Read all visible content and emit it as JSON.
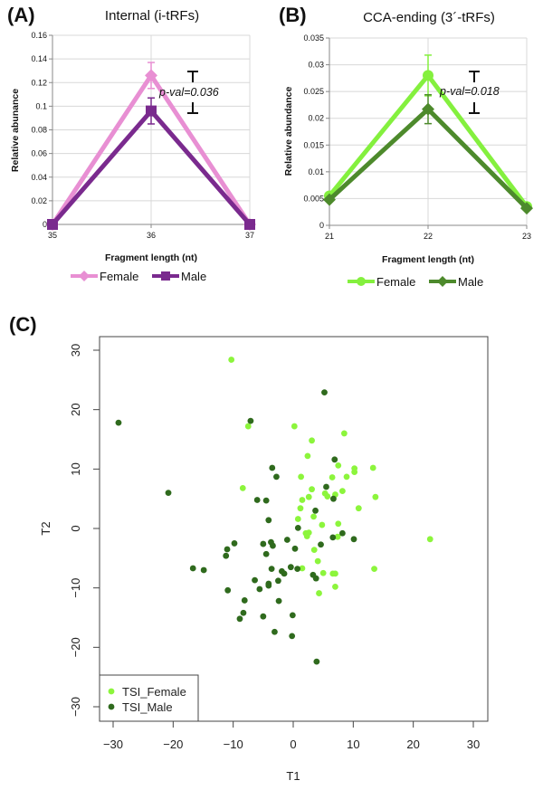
{
  "chart_data": [
    {
      "panel_label": "(A)",
      "type": "line",
      "title": "Internal (i-tRFs)",
      "xlabel": "Fragment length (nt)",
      "ylabel": "Relative abunance",
      "x": [
        35,
        36,
        37
      ],
      "xticks": [
        "35",
        "36",
        "37"
      ],
      "ylim": [
        0,
        0.16
      ],
      "yticks": [
        "0",
        "0.02",
        "0.04",
        "0.06",
        "0.08",
        "0.1",
        "0.12",
        "0.14",
        "0.16"
      ],
      "grid": true,
      "legend": "bottom",
      "annotation": "p-val=0.036",
      "series": [
        {
          "name": "Female",
          "values": [
            0,
            0.126,
            0
          ],
          "errors": [
            0,
            0.011,
            0
          ],
          "color": "#e88fd3",
          "marker": "diamond"
        },
        {
          "name": "Male",
          "values": [
            0,
            0.096,
            0
          ],
          "errors": [
            0,
            0.011,
            0
          ],
          "color": "#7a2a8e",
          "marker": "square"
        }
      ]
    },
    {
      "panel_label": "(B)",
      "type": "line",
      "title": "CCA-ending (3´-tRFs)",
      "xlabel": "Fragment length (nt)",
      "ylabel": "Relative abundance",
      "x": [
        21,
        22,
        23
      ],
      "xticks": [
        "21",
        "22",
        "23"
      ],
      "ylim": [
        0,
        0.035
      ],
      "yticks": [
        "0",
        "0.005",
        "0.01",
        "0.015",
        "0.02",
        "0.025",
        "0.03",
        "0.035"
      ],
      "grid": true,
      "legend": "bottom",
      "annotation": "p-val=0.018",
      "series": [
        {
          "name": "Female",
          "values": [
            0.0055,
            0.028,
            0.0035
          ],
          "errors": [
            0,
            0.0038,
            0
          ],
          "color": "#84f03e",
          "marker": "circle"
        },
        {
          "name": "Male",
          "values": [
            0.0048,
            0.0217,
            0.0032
          ],
          "errors": [
            0,
            0.0027,
            0
          ],
          "color": "#4d8a2c",
          "marker": "diamond"
        }
      ]
    },
    {
      "panel_label": "(C)",
      "type": "scatter",
      "xlabel": "T1",
      "ylabel": "T2",
      "xlim": [
        -32.4,
        32.4
      ],
      "ylim": [
        -32.4,
        31
      ],
      "xticks": [
        "−30",
        "−20",
        "−10",
        "0",
        "10",
        "20",
        "30"
      ],
      "yticks": [
        "−30",
        "−20",
        "−10",
        "0",
        "10",
        "20",
        "30"
      ],
      "grid": false,
      "legend": "bottom-left",
      "series": [
        {
          "name": "TSI_Female",
          "color": "#8cf53c",
          "points": [
            [
              -10.3,
              28.4
            ],
            [
              -7.5,
              17.2
            ],
            [
              0.2,
              17.2
            ],
            [
              8.5,
              16.0
            ],
            [
              3.1,
              14.8
            ],
            [
              2.4,
              12.2
            ],
            [
              7.5,
              10.6
            ],
            [
              10.2,
              10.1
            ],
            [
              13.3,
              10.2
            ],
            [
              10.2,
              9.5
            ],
            [
              1.3,
              8.7
            ],
            [
              6.5,
              8.6
            ],
            [
              8.9,
              8.7
            ],
            [
              -8.4,
              6.8
            ],
            [
              3.1,
              6.6
            ],
            [
              8.2,
              6.3
            ],
            [
              2.6,
              5.3
            ],
            [
              5.3,
              5.9
            ],
            [
              5.7,
              5.4
            ],
            [
              7.0,
              5.7
            ],
            [
              13.7,
              5.3
            ],
            [
              1.5,
              4.8
            ],
            [
              1.2,
              3.4
            ],
            [
              10.9,
              3.4
            ],
            [
              3.4,
              2.0
            ],
            [
              0.8,
              1.6
            ],
            [
              4.8,
              0.6
            ],
            [
              7.5,
              0.8
            ],
            [
              2.1,
              -0.8
            ],
            [
              2.6,
              -0.7
            ],
            [
              2.3,
              -1.3
            ],
            [
              7.4,
              -1.4
            ],
            [
              22.8,
              -1.8
            ],
            [
              3.5,
              -3.6
            ],
            [
              4.1,
              -5.5
            ],
            [
              1.5,
              -6.7
            ],
            [
              13.5,
              -6.8
            ],
            [
              5.0,
              -7.5
            ],
            [
              6.6,
              -7.6
            ],
            [
              7.0,
              -7.6
            ],
            [
              7.0,
              -9.8
            ],
            [
              4.3,
              -10.9
            ]
          ]
        },
        {
          "name": "TSI_Male",
          "color": "#2f6a1d",
          "points": [
            [
              5.2,
              22.9
            ],
            [
              -29.1,
              17.8
            ],
            [
              -7.1,
              18.1
            ],
            [
              6.9,
              11.6
            ],
            [
              -3.5,
              10.2
            ],
            [
              -2.8,
              8.7
            ],
            [
              -20.8,
              6.0
            ],
            [
              5.5,
              7.0
            ],
            [
              -6.0,
              4.8
            ],
            [
              -4.5,
              4.7
            ],
            [
              6.7,
              5.0
            ],
            [
              3.7,
              3.0
            ],
            [
              -4.1,
              1.4
            ],
            [
              0.8,
              0.1
            ],
            [
              6.6,
              -1.5
            ],
            [
              8.2,
              -0.8
            ],
            [
              10.1,
              -1.8
            ],
            [
              -9.8,
              -2.5
            ],
            [
              -1.0,
              -1.9
            ],
            [
              -5.0,
              -2.6
            ],
            [
              -3.7,
              -2.3
            ],
            [
              -3.4,
              -2.9
            ],
            [
              4.6,
              -2.7
            ],
            [
              -11.0,
              -3.5
            ],
            [
              -11.2,
              -4.6
            ],
            [
              0.3,
              -3.4
            ],
            [
              -4.5,
              -4.3
            ],
            [
              -16.7,
              -6.7
            ],
            [
              -14.9,
              -7.0
            ],
            [
              -3.6,
              -6.8
            ],
            [
              -0.4,
              -6.5
            ],
            [
              0.7,
              -6.8
            ],
            [
              -1.9,
              -7.2
            ],
            [
              -1.5,
              -7.6
            ],
            [
              3.3,
              -7.8
            ],
            [
              3.8,
              -8.4
            ],
            [
              -6.4,
              -8.7
            ],
            [
              -2.5,
              -8.8
            ],
            [
              -4.1,
              -9.3
            ],
            [
              -4.1,
              -9.6
            ],
            [
              -5.6,
              -10.2
            ],
            [
              -10.9,
              -10.4
            ],
            [
              -8.1,
              -12.1
            ],
            [
              -2.4,
              -12.2
            ],
            [
              -8.3,
              -14.2
            ],
            [
              -8.9,
              -15.2
            ],
            [
              -5.0,
              -14.8
            ],
            [
              -0.1,
              -14.6
            ],
            [
              -3.1,
              -17.4
            ],
            [
              -0.2,
              -18.1
            ],
            [
              3.9,
              -22.4
            ]
          ]
        }
      ]
    }
  ]
}
